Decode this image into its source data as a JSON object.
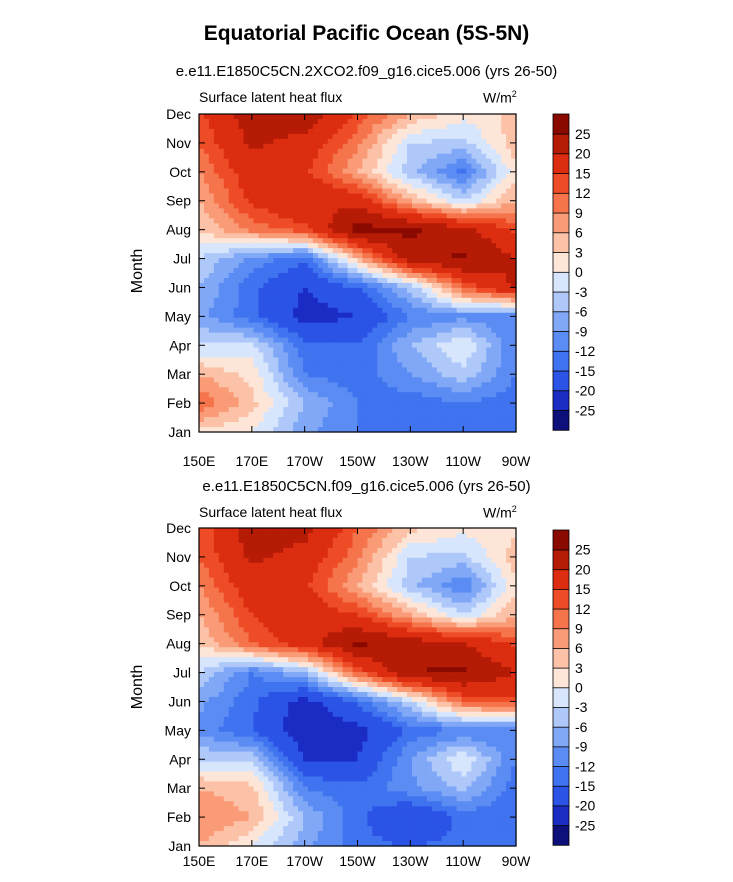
{
  "title": "Equatorial Pacific Ocean (5S-5N)",
  "unit": {
    "base": "W/m",
    "exp": "2"
  },
  "colors": [
    "#0d0f7a",
    "#1b2cc4",
    "#2b54e6",
    "#3f73ef",
    "#5a8cf3",
    "#80a8f6",
    "#aec8fa",
    "#d7e6fd",
    "#fde6d8",
    "#fcc2a8",
    "#fa9b77",
    "#f5744c",
    "#ee4c26",
    "#dc2d10",
    "#b51b05",
    "#8a0a00"
  ],
  "levels": [
    -25,
    -20,
    -15,
    -12,
    -9,
    -6,
    -3,
    0,
    3,
    6,
    9,
    12,
    15,
    20,
    25
  ],
  "chart_data": [
    {
      "type": "heatmap",
      "subtitle": "e.e11.E1850C5CN.2XCO2.f09_g16.cice5.006 (yrs 26-50)",
      "panel_label": "Surface latent heat flux",
      "xlabel": "",
      "ylabel": "Month",
      "x_ticks": [
        "150E",
        "170E",
        "170W",
        "150W",
        "130W",
        "110W",
        "90W"
      ],
      "x": [
        "150E",
        "170E",
        "170W",
        "150W",
        "130W",
        "110W",
        "90W"
      ],
      "y_ticks": [
        "Jan",
        "Feb",
        "Mar",
        "Apr",
        "May",
        "Jun",
        "Jul",
        "Aug",
        "Sep",
        "Oct",
        "Nov",
        "Dec"
      ],
      "y": [
        "Jan",
        "Feb",
        "Mar",
        "Apr",
        "May",
        "Jun",
        "Jul",
        "Aug",
        "Sep",
        "Oct",
        "Nov",
        "Dec"
      ],
      "colorbar_labels": [
        "25",
        "20",
        "15",
        "12",
        "9",
        "6",
        "3",
        "0",
        "-3",
        "-6",
        "-9",
        "-12",
        "-15",
        "-20",
        "-25"
      ],
      "values": [
        [
          2,
          0,
          -8,
          -12,
          -14,
          -12,
          -12
        ],
        [
          12,
          4,
          -6,
          -12,
          -14,
          -12,
          -14
        ],
        [
          6,
          2,
          -12,
          -14,
          -9,
          -4,
          -12
        ],
        [
          -3,
          -2,
          -14,
          -15,
          -6,
          0,
          -12
        ],
        [
          -8,
          -14,
          -22,
          -20,
          -12,
          -10,
          -12
        ],
        [
          -6,
          -14,
          -20,
          -15,
          -5,
          12,
          21
        ],
        [
          -3,
          -10,
          -14,
          5,
          23,
          26,
          20
        ],
        [
          3,
          10,
          14,
          27,
          26,
          22,
          14
        ],
        [
          6,
          16,
          20,
          18,
          6,
          -3,
          6
        ],
        [
          9,
          18,
          16,
          6,
          -5,
          -13,
          2
        ],
        [
          12,
          21,
          18,
          10,
          -3,
          -4,
          5
        ],
        [
          14,
          23,
          24,
          14,
          6,
          1,
          4
        ]
      ]
    },
    {
      "type": "heatmap",
      "subtitle": "e.e11.E1850C5CN.f09_g16.cice5.006 (yrs 26-50)",
      "panel_label": "Surface latent heat flux",
      "xlabel": "",
      "ylabel": "Month",
      "x_ticks": [
        "150E",
        "170E",
        "170W",
        "150W",
        "130W",
        "110W",
        "90W"
      ],
      "x": [
        "150E",
        "170E",
        "170W",
        "150W",
        "130W",
        "110W",
        "90W"
      ],
      "y_ticks": [
        "Jan",
        "Feb",
        "Mar",
        "Apr",
        "May",
        "Jun",
        "Jul",
        "Aug",
        "Sep",
        "Oct",
        "Nov",
        "Dec"
      ],
      "y": [
        "Jan",
        "Feb",
        "Mar",
        "Apr",
        "May",
        "Jun",
        "Jul",
        "Aug",
        "Sep",
        "Oct",
        "Nov",
        "Dec"
      ],
      "colorbar_labels": [
        "25",
        "20",
        "15",
        "12",
        "9",
        "6",
        "3",
        "0",
        "-3",
        "-6",
        "-9",
        "-12",
        "-15",
        "-20",
        "-25"
      ],
      "values": [
        [
          6,
          0,
          -8,
          -14,
          -15,
          -14,
          -14
        ],
        [
          9,
          6,
          -6,
          -14,
          -20,
          -14,
          -14
        ],
        [
          6,
          4,
          -12,
          -14,
          -10,
          -5,
          -14
        ],
        [
          -3,
          -4,
          -20,
          -20,
          -9,
          0,
          -12
        ],
        [
          -10,
          -15,
          -24,
          -22,
          -14,
          -12,
          -12
        ],
        [
          -8,
          -14,
          -22,
          -14,
          -3,
          12,
          14
        ],
        [
          -3,
          -12,
          -6,
          12,
          25,
          26,
          20
        ],
        [
          3,
          12,
          18,
          26,
          23,
          20,
          14
        ],
        [
          6,
          15,
          18,
          15,
          6,
          -3,
          6
        ],
        [
          9,
          18,
          16,
          6,
          -5,
          -12,
          2
        ],
        [
          12,
          21,
          18,
          10,
          -3,
          -4,
          5
        ],
        [
          12,
          23,
          22,
          12,
          4,
          1,
          2
        ]
      ]
    }
  ]
}
